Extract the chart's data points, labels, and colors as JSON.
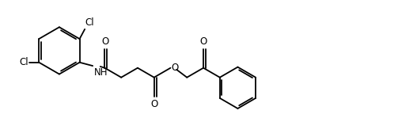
{
  "bg_color": "#ffffff",
  "line_color": "#000000",
  "line_width": 1.3,
  "font_size": 8.5,
  "fig_width": 5.03,
  "fig_height": 1.54,
  "dpi": 100,
  "xlim": [
    -0.3,
    10.6
  ],
  "ylim": [
    -0.2,
    3.3
  ]
}
